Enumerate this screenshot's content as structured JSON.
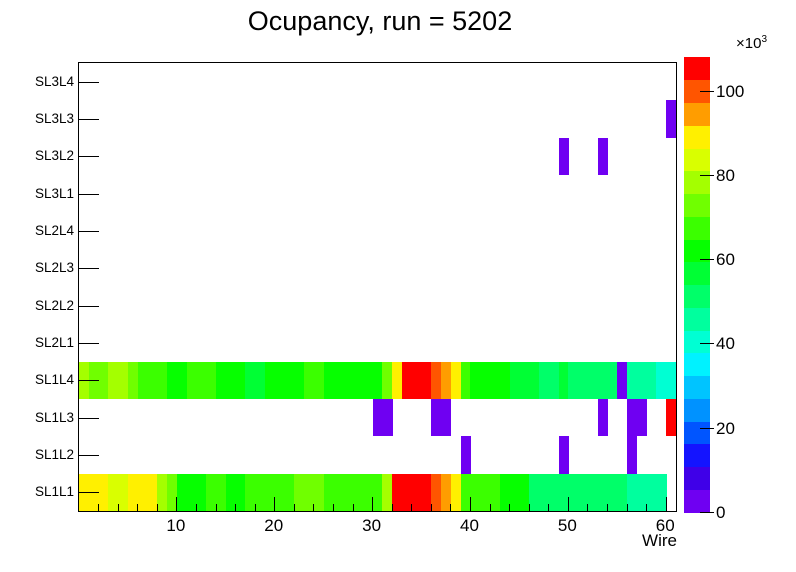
{
  "title": "Ocupancy, run = 5202",
  "chart_data": {
    "type": "heatmap",
    "title": "Ocupancy, run = 5202",
    "xlabel": "Wire",
    "x_range": [
      0,
      61
    ],
    "x_ticks": [
      10,
      20,
      30,
      40,
      50,
      60
    ],
    "x_minor_tick_step": 2,
    "rows_order": "bottom_to_top",
    "rows": [
      "SL1L1",
      "SL1L2",
      "SL1L3",
      "SL1L4",
      "SL2L1",
      "SL2L2",
      "SL2L3",
      "SL2L4",
      "SL3L1",
      "SL3L2",
      "SL3L3",
      "SL3L4"
    ],
    "value_unit": "counts ×10³",
    "z_range": [
      0,
      108
    ],
    "z_ticks": [
      0,
      20,
      40,
      60,
      80,
      100
    ],
    "z_exponent_base": "×10",
    "z_exponent_power": "3",
    "legend_position": "right-palette-bar",
    "grid": false,
    "palette": [
      "#6f00f2",
      "#3f00e8",
      "#1414ff",
      "#0055ff",
      "#0092ff",
      "#00c4ff",
      "#00f2ff",
      "#00ffd3",
      "#00ff9e",
      "#00ff69",
      "#00ff34",
      "#06ff00",
      "#3bff00",
      "#70ff00",
      "#a4ff00",
      "#d9ff00",
      "#fff000",
      "#ff9d00",
      "#ff5500",
      "#ff0000"
    ],
    "series": [
      {
        "row": "SL1L1",
        "cells": [
          [
            1,
            88
          ],
          [
            2,
            88
          ],
          [
            3,
            88
          ],
          [
            4,
            84
          ],
          [
            5,
            84
          ],
          [
            6,
            88
          ],
          [
            7,
            88
          ],
          [
            8,
            88
          ],
          [
            9,
            79
          ],
          [
            10,
            74
          ],
          [
            11,
            62
          ],
          [
            12,
            62
          ],
          [
            13,
            62
          ],
          [
            14,
            66
          ],
          [
            15,
            66
          ],
          [
            16,
            62
          ],
          [
            17,
            62
          ],
          [
            18,
            67
          ],
          [
            19,
            67
          ],
          [
            20,
            66
          ],
          [
            21,
            66
          ],
          [
            22,
            66
          ],
          [
            23,
            72
          ],
          [
            24,
            72
          ],
          [
            25,
            72
          ],
          [
            26,
            66
          ],
          [
            27,
            66
          ],
          [
            28,
            66
          ],
          [
            29,
            66
          ],
          [
            30,
            66
          ],
          [
            31,
            66
          ],
          [
            32,
            78
          ],
          [
            33,
            106
          ],
          [
            34,
            106
          ],
          [
            35,
            106
          ],
          [
            36,
            106
          ],
          [
            37,
            100
          ],
          [
            38,
            95
          ],
          [
            39,
            88
          ],
          [
            40,
            66
          ],
          [
            41,
            66
          ],
          [
            42,
            66
          ],
          [
            43,
            66
          ],
          [
            44,
            62
          ],
          [
            45,
            62
          ],
          [
            46,
            62
          ],
          [
            47,
            52
          ],
          [
            48,
            52
          ],
          [
            49,
            52
          ],
          [
            50,
            52
          ],
          [
            51,
            52
          ],
          [
            52,
            52
          ],
          [
            53,
            52
          ],
          [
            54,
            52
          ],
          [
            55,
            52
          ],
          [
            56,
            52
          ],
          [
            57,
            47
          ],
          [
            58,
            47
          ],
          [
            59,
            47
          ],
          [
            60,
            47
          ]
        ]
      },
      {
        "row": "SL1L2",
        "cells": [
          [
            40,
            4
          ],
          [
            50,
            4
          ],
          [
            57,
            4
          ]
        ]
      },
      {
        "row": "SL1L3",
        "cells": [
          [
            31,
            4
          ],
          [
            32,
            4
          ],
          [
            37,
            4
          ],
          [
            38,
            4
          ],
          [
            54,
            4
          ],
          [
            57,
            4
          ],
          [
            58,
            4
          ],
          [
            61,
            105
          ]
        ]
      },
      {
        "row": "SL1L4",
        "cells": [
          [
            1,
            78
          ],
          [
            2,
            73
          ],
          [
            3,
            73
          ],
          [
            4,
            79
          ],
          [
            5,
            79
          ],
          [
            6,
            74
          ],
          [
            7,
            67
          ],
          [
            8,
            67
          ],
          [
            9,
            67
          ],
          [
            10,
            62
          ],
          [
            11,
            62
          ],
          [
            12,
            67
          ],
          [
            13,
            67
          ],
          [
            14,
            67
          ],
          [
            15,
            62
          ],
          [
            16,
            62
          ],
          [
            17,
            62
          ],
          [
            18,
            57
          ],
          [
            19,
            57
          ],
          [
            20,
            62
          ],
          [
            21,
            62
          ],
          [
            22,
            62
          ],
          [
            23,
            62
          ],
          [
            24,
            67
          ],
          [
            25,
            67
          ],
          [
            26,
            62
          ],
          [
            27,
            62
          ],
          [
            28,
            62
          ],
          [
            29,
            62
          ],
          [
            30,
            62
          ],
          [
            31,
            62
          ],
          [
            32,
            73
          ],
          [
            33,
            89
          ],
          [
            34,
            106
          ],
          [
            35,
            106
          ],
          [
            36,
            106
          ],
          [
            37,
            100
          ],
          [
            38,
            95
          ],
          [
            39,
            89
          ],
          [
            40,
            67
          ],
          [
            41,
            62
          ],
          [
            42,
            62
          ],
          [
            43,
            62
          ],
          [
            44,
            62
          ],
          [
            45,
            57
          ],
          [
            46,
            57
          ],
          [
            47,
            57
          ],
          [
            48,
            52
          ],
          [
            49,
            52
          ],
          [
            50,
            57
          ],
          [
            51,
            52
          ],
          [
            52,
            52
          ],
          [
            53,
            52
          ],
          [
            54,
            52
          ],
          [
            55,
            52
          ],
          [
            56,
            4
          ],
          [
            57,
            47
          ],
          [
            58,
            47
          ],
          [
            59,
            47
          ],
          [
            60,
            41
          ],
          [
            61,
            41
          ]
        ]
      },
      {
        "row": "SL3L2",
        "cells": [
          [
            50,
            4
          ],
          [
            54,
            4
          ]
        ]
      },
      {
        "row": "SL3L3",
        "cells": [
          [
            61,
            4
          ]
        ]
      }
    ]
  }
}
